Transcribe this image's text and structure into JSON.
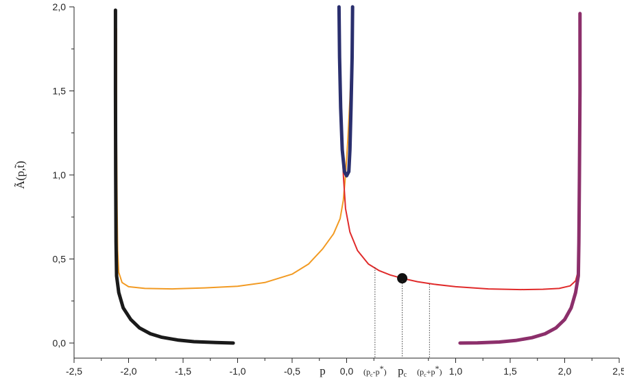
{
  "chart_data": {
    "type": "line",
    "ylabel": "Ã(p,t̃)",
    "xlim": [
      -2.5,
      2.5
    ],
    "ylim": [
      -0.1,
      2.0
    ],
    "x_ticks": [
      {
        "value": -2.5,
        "label": "-2,5"
      },
      {
        "value": -2.0,
        "label": "-2,0"
      },
      {
        "value": -1.5,
        "label": "-1,5"
      },
      {
        "value": -1.0,
        "label": "-1,0"
      },
      {
        "value": -0.5,
        "label": "-0,5"
      },
      {
        "value": 0.0,
        "label": "0,0"
      },
      {
        "value": 1.0,
        "label": "1,0"
      },
      {
        "value": 1.5,
        "label": "1,5"
      },
      {
        "value": 2.0,
        "label": "2,0"
      },
      {
        "value": 2.5,
        "label": "2,5"
      }
    ],
    "y_ticks": [
      {
        "value": 0.0,
        "label": "0,0"
      },
      {
        "value": 0.5,
        "label": "0,5"
      },
      {
        "value": 1.0,
        "label": "1,0"
      },
      {
        "value": 1.5,
        "label": "1,5"
      },
      {
        "value": 2.0,
        "label": "2,0"
      }
    ],
    "x_annotations": [
      {
        "value": -0.22,
        "label": "p"
      },
      {
        "value": 0.26,
        "label": "(pc-p*)"
      },
      {
        "value": 0.51,
        "label": "pc"
      },
      {
        "value": 0.76,
        "label": "(pc+p*)"
      }
    ],
    "vlines": [
      {
        "x": 0.26,
        "ymax": 0.45
      },
      {
        "x": 0.51,
        "ymax": 0.37
      },
      {
        "x": 0.76,
        "ymax": 0.35
      }
    ],
    "critical_point": {
      "x": 0.51,
      "y": 0.385
    },
    "series": [
      {
        "color": "#f29a22",
        "width": 2,
        "points": [
          [
            -2.11,
            1.87
          ],
          [
            -2.11,
            1.2
          ],
          [
            -2.105,
            0.8
          ],
          [
            -2.1,
            0.55
          ],
          [
            -2.09,
            0.42
          ],
          [
            -2.06,
            0.36
          ],
          [
            -2.0,
            0.335
          ],
          [
            -1.85,
            0.325
          ],
          [
            -1.6,
            0.322
          ],
          [
            -1.3,
            0.328
          ],
          [
            -1.0,
            0.338
          ],
          [
            -0.75,
            0.36
          ],
          [
            -0.5,
            0.41
          ],
          [
            -0.35,
            0.47
          ],
          [
            -0.22,
            0.56
          ],
          [
            -0.12,
            0.65
          ],
          [
            -0.06,
            0.74
          ],
          [
            -0.03,
            0.85
          ],
          [
            -0.01,
            1.0
          ],
          [
            0.01,
            1.2
          ],
          [
            0.03,
            1.45
          ],
          [
            0.045,
            1.7
          ],
          [
            0.055,
            2.0
          ]
        ]
      },
      {
        "color": "#e02a2a",
        "width": 2,
        "points": [
          [
            -0.065,
            2.0
          ],
          [
            -0.058,
            1.6
          ],
          [
            -0.045,
            1.25
          ],
          [
            -0.03,
            1.0
          ],
          [
            -0.01,
            0.8
          ],
          [
            0.03,
            0.66
          ],
          [
            0.1,
            0.55
          ],
          [
            0.2,
            0.47
          ],
          [
            0.3,
            0.43
          ],
          [
            0.4,
            0.405
          ],
          [
            0.51,
            0.385
          ],
          [
            0.65,
            0.365
          ],
          [
            0.8,
            0.35
          ],
          [
            1.0,
            0.335
          ],
          [
            1.3,
            0.322
          ],
          [
            1.6,
            0.318
          ],
          [
            1.8,
            0.32
          ],
          [
            1.95,
            0.325
          ],
          [
            2.05,
            0.34
          ],
          [
            2.1,
            0.37
          ],
          [
            2.12,
            0.42
          ],
          [
            2.13,
            0.55
          ],
          [
            2.135,
            0.8
          ],
          [
            2.14,
            1.2
          ],
          [
            2.14,
            1.62
          ]
        ]
      },
      {
        "color": "#1a1a1a",
        "width": 5,
        "points": [
          [
            -2.12,
            1.98
          ],
          [
            -2.12,
            1.5
          ],
          [
            -2.118,
            1.0
          ],
          [
            -2.115,
            0.6
          ],
          [
            -2.11,
            0.4
          ],
          [
            -2.09,
            0.3
          ],
          [
            -2.05,
            0.21
          ],
          [
            -1.98,
            0.14
          ],
          [
            -1.9,
            0.09
          ],
          [
            -1.8,
            0.055
          ],
          [
            -1.7,
            0.035
          ],
          [
            -1.55,
            0.018
          ],
          [
            -1.4,
            0.008
          ],
          [
            -1.2,
            0.003
          ],
          [
            -1.04,
            0.0
          ]
        ]
      },
      {
        "color": "#2a2f6e",
        "width": 5,
        "points": [
          [
            -0.07,
            2.0
          ],
          [
            -0.065,
            1.7
          ],
          [
            -0.055,
            1.4
          ],
          [
            -0.04,
            1.15
          ],
          [
            -0.02,
            1.02
          ],
          [
            0.0,
            0.995
          ],
          [
            0.02,
            1.02
          ],
          [
            0.03,
            1.15
          ],
          [
            0.04,
            1.4
          ],
          [
            0.05,
            1.7
          ],
          [
            0.055,
            2.0
          ]
        ]
      },
      {
        "color": "#8c2f6b",
        "width": 5,
        "points": [
          [
            1.04,
            0.0
          ],
          [
            1.2,
            0.001
          ],
          [
            1.4,
            0.006
          ],
          [
            1.55,
            0.015
          ],
          [
            1.7,
            0.032
          ],
          [
            1.82,
            0.055
          ],
          [
            1.92,
            0.09
          ],
          [
            2.0,
            0.14
          ],
          [
            2.06,
            0.21
          ],
          [
            2.1,
            0.3
          ],
          [
            2.125,
            0.4
          ],
          [
            2.13,
            0.6
          ],
          [
            2.135,
            1.0
          ],
          [
            2.14,
            1.5
          ],
          [
            2.14,
            1.96
          ]
        ]
      }
    ]
  }
}
